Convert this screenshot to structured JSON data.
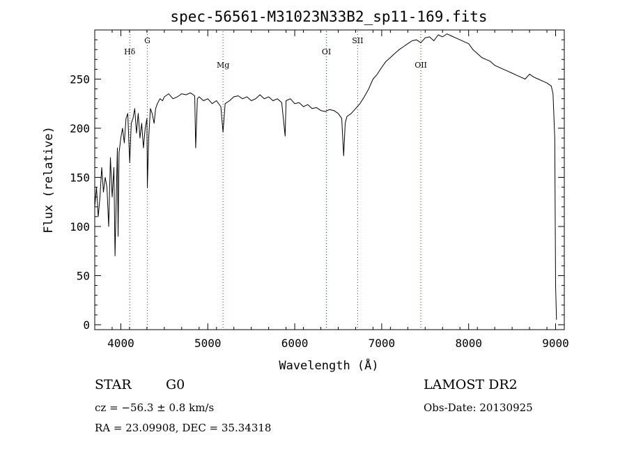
{
  "chart_data": {
    "type": "line",
    "title": "spec-56561-M31023N33B2_sp11-169.fits",
    "xlabel": "Wavelength (Å)",
    "ylabel": "Flux (relative)",
    "xlim": [
      3700,
      9100
    ],
    "ylim": [
      -5,
      300
    ],
    "xticks": [
      4000,
      5000,
      6000,
      7000,
      8000,
      9000
    ],
    "yticks": [
      0,
      50,
      100,
      150,
      200,
      250
    ],
    "grid": false,
    "line_markers": [
      {
        "label": "Hδ",
        "x": 4102
      },
      {
        "label": "G",
        "x": 4305
      },
      {
        "label": "Mg",
        "x": 5175
      },
      {
        "label": "OI",
        "x": 6364
      },
      {
        "label": "SII",
        "x": 6723
      },
      {
        "label": "OII",
        "x": 7450
      }
    ],
    "series": [
      {
        "x": [
          3700,
          3720,
          3740,
          3760,
          3780,
          3800,
          3820,
          3840,
          3860,
          3880,
          3900,
          3920,
          3933,
          3945,
          3960,
          3968,
          3980,
          4000,
          4020,
          4040,
          4060,
          4080,
          4102,
          4120,
          4140,
          4160,
          4180,
          4200,
          4220,
          4240,
          4260,
          4280,
          4300,
          4305,
          4320,
          4340,
          4360,
          4383,
          4400,
          4420,
          4450,
          4480,
          4500,
          4550,
          4600,
          4650,
          4700,
          4750,
          4800,
          4850,
          4861,
          4880,
          4900,
          4950,
          5000,
          5050,
          5100,
          5150,
          5175,
          5200,
          5250,
          5300,
          5350,
          5400,
          5450,
          5500,
          5550,
          5600,
          5650,
          5700,
          5750,
          5800,
          5850,
          5890,
          5900,
          5950,
          6000,
          6050,
          6100,
          6150,
          6200,
          6250,
          6300,
          6350,
          6400,
          6450,
          6500,
          6540,
          6563,
          6580,
          6600,
          6650,
          6700,
          6750,
          6800,
          6850,
          6900,
          6950,
          7000,
          7050,
          7100,
          7150,
          7200,
          7250,
          7300,
          7350,
          7400,
          7450,
          7500,
          7550,
          7600,
          7650,
          7700,
          7750,
          7800,
          7850,
          7900,
          7950,
          8000,
          8050,
          8100,
          8150,
          8200,
          8250,
          8300,
          8350,
          8400,
          8450,
          8500,
          8550,
          8600,
          8650,
          8700,
          8750,
          8800,
          8850,
          8900,
          8950,
          8970,
          8990,
          9000,
          9010
        ],
        "y": [
          120,
          140,
          110,
          130,
          160,
          135,
          150,
          140,
          100,
          170,
          130,
          160,
          70,
          120,
          180,
          90,
          175,
          190,
          200,
          185,
          210,
          215,
          165,
          205,
          210,
          220,
          195,
          215,
          190,
          205,
          180,
          200,
          210,
          140,
          190,
          220,
          215,
          205,
          220,
          225,
          230,
          228,
          232,
          235,
          230,
          232,
          235,
          234,
          236,
          233,
          180,
          230,
          232,
          228,
          230,
          225,
          228,
          222,
          196,
          225,
          228,
          232,
          233,
          230,
          232,
          228,
          230,
          234,
          230,
          232,
          228,
          230,
          226,
          192,
          228,
          230,
          225,
          226,
          222,
          224,
          220,
          221,
          218,
          217,
          219,
          218,
          215,
          210,
          172,
          205,
          212,
          215,
          220,
          225,
          232,
          240,
          250,
          255,
          262,
          268,
          272,
          276,
          280,
          283,
          286,
          289,
          290,
          287,
          292,
          293,
          289,
          295,
          293,
          296,
          294,
          292,
          290,
          288,
          286,
          280,
          276,
          272,
          270,
          268,
          264,
          262,
          260,
          258,
          256,
          254,
          252,
          250,
          255,
          252,
          250,
          248,
          246,
          243,
          235,
          190,
          40,
          5
        ]
      }
    ]
  },
  "info": {
    "class": "STAR",
    "subclass": "G0",
    "survey": "LAMOST DR2",
    "cz": "cz = −56.3 ± 0.8 km/s",
    "obs_date": "Obs-Date: 20130925",
    "coords": "RA =  23.09908, DEC =  35.34318"
  }
}
